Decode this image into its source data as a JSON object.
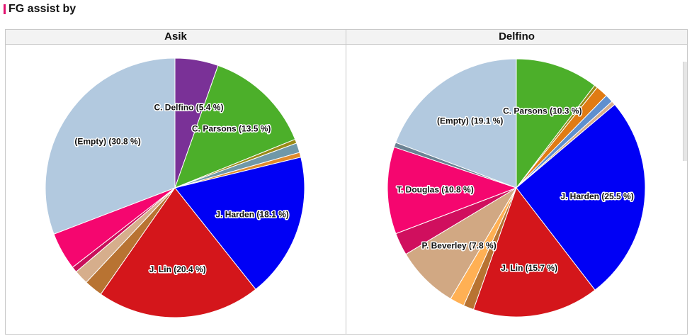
{
  "header": {
    "title": "FG assist by"
  },
  "colors": {
    "accent": "#e0106e"
  },
  "chart_data": [
    {
      "type": "pie",
      "title": "Asik",
      "slices": [
        {
          "label": "C. Delfino",
          "value": 5.4,
          "color": "#7a3197",
          "display": "C. Delfino (5.4 %)"
        },
        {
          "label": "C. Parsons",
          "value": 13.5,
          "color": "#4caf2a",
          "display": "C. Parsons (13.5 %)"
        },
        {
          "label": "",
          "value": 0.5,
          "color": "#9a8a16",
          "display": ""
        },
        {
          "label": "",
          "value": 1.2,
          "color": "#6f98a8",
          "display": ""
        },
        {
          "label": "",
          "value": 0.6,
          "color": "#e08b2c",
          "display": ""
        },
        {
          "label": "J. Harden",
          "value": 18.1,
          "color": "#0000f5",
          "display": "J. Harden (18.1 %)"
        },
        {
          "label": "J. Lin",
          "value": 20.4,
          "color": "#d4161b",
          "display": "J. Lin (20.4 %)"
        },
        {
          "label": "",
          "value": 2.3,
          "color": "#b87332",
          "display": ""
        },
        {
          "label": "",
          "value": 1.8,
          "color": "#d6ae8c",
          "display": ""
        },
        {
          "label": "",
          "value": 0.7,
          "color": "#c80f5a",
          "display": ""
        },
        {
          "label": "",
          "value": 4.7,
          "color": "#f5066f",
          "display": ""
        },
        {
          "label": "(Empty)",
          "value": 30.8,
          "color": "#b2c9df",
          "display": "(Empty) (30.8 %)"
        }
      ]
    },
    {
      "type": "pie",
      "title": "Delfino",
      "slices": [
        {
          "label": "C. Parsons",
          "value": 10.3,
          "color": "#4caf2a",
          "display": "C. Parsons (10.3 %)"
        },
        {
          "label": "",
          "value": 0.4,
          "color": "#9a8a16",
          "display": ""
        },
        {
          "label": "",
          "value": 1.5,
          "color": "#e07b14",
          "display": ""
        },
        {
          "label": "",
          "value": 1.0,
          "color": "#5f8fcf",
          "display": ""
        },
        {
          "label": "",
          "value": 0.5,
          "color": "#d6ae8c",
          "display": ""
        },
        {
          "label": "J. Harden",
          "value": 25.5,
          "color": "#0000f5",
          "display": "J. Harden (25.5 %)"
        },
        {
          "label": "J. Lin",
          "value": 15.7,
          "color": "#d4161b",
          "display": "J. Lin (15.7 %)"
        },
        {
          "label": "",
          "value": 1.3,
          "color": "#b87332",
          "display": ""
        },
        {
          "label": "",
          "value": 1.8,
          "color": "#ffb054",
          "display": ""
        },
        {
          "label": "P. Beverley",
          "value": 7.8,
          "color": "#d1a883",
          "display": "P. Beverley (7.8 %)"
        },
        {
          "label": "",
          "value": 2.8,
          "color": "#d00f5e",
          "display": ""
        },
        {
          "label": "T. Douglas",
          "value": 10.8,
          "color": "#f5066f",
          "display": "T. Douglas (10.8 %)"
        },
        {
          "label": "",
          "value": 0.6,
          "color": "#6a8293",
          "display": ""
        },
        {
          "label": "(Empty)",
          "value": 19.1,
          "color": "#b2c9df",
          "display": "(Empty) (19.1 %)"
        }
      ]
    }
  ]
}
